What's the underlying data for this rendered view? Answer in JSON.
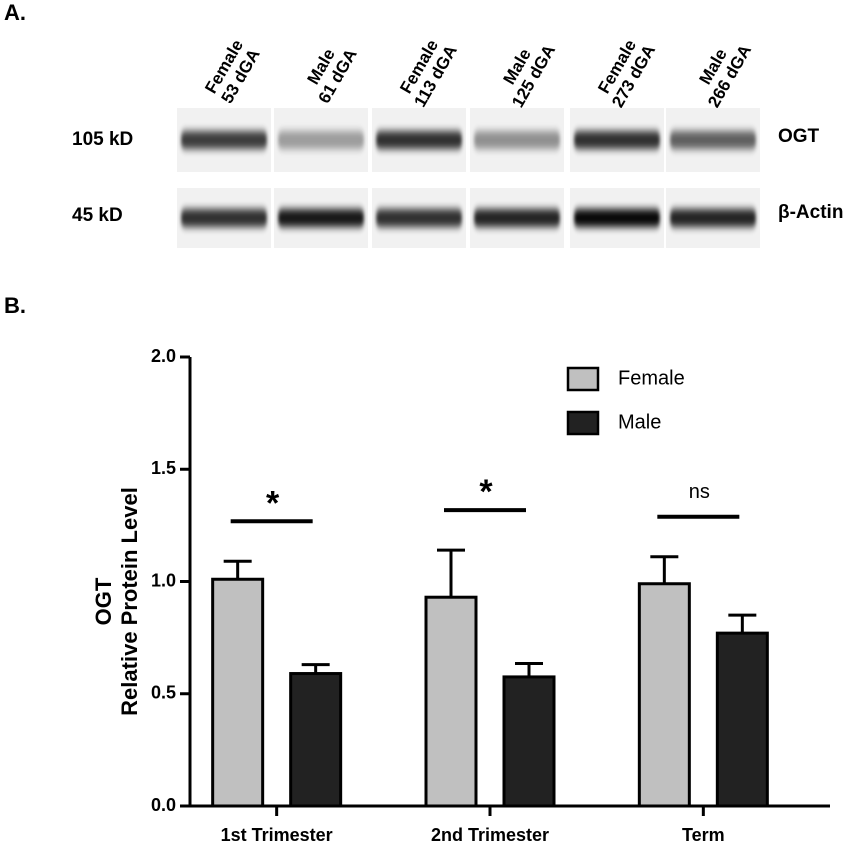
{
  "panel_a": {
    "label": "A.",
    "lanes": [
      {
        "sex": "Female",
        "age": "53 dGA"
      },
      {
        "sex": "Male",
        "age": "61 dGA"
      },
      {
        "sex": "Female",
        "age": "113 dGA"
      },
      {
        "sex": "Male",
        "age": "125 dGA"
      },
      {
        "sex": "Female",
        "age": "273 dGA"
      },
      {
        "sex": "Male",
        "age": "266 dGA"
      }
    ],
    "rows": [
      {
        "weight": "105 kD",
        "protein": "OGT"
      },
      {
        "weight": "45 kD",
        "protein": "β-Actin"
      }
    ]
  },
  "chart_data": {
    "type": "bar",
    "panel_label": "B.",
    "ylabel": [
      "OGT",
      "Relative Protein Level"
    ],
    "categories": [
      "1st Trimester",
      "2nd Trimester",
      "Term"
    ],
    "series": [
      {
        "name": "Female",
        "color": "#c0c0c0",
        "values": [
          1.01,
          0.93,
          0.99
        ],
        "errors": [
          0.08,
          0.21,
          0.12
        ]
      },
      {
        "name": "Male",
        "color": "#222222",
        "values": [
          0.59,
          0.575,
          0.77
        ],
        "errors": [
          0.04,
          0.06,
          0.08
        ]
      }
    ],
    "annotations": [
      "*",
      "*",
      "ns"
    ],
    "ylim": [
      0,
      2
    ],
    "yticks": [
      {
        "value": 0,
        "label": "0.0"
      },
      {
        "value": 0.5,
        "label": "0.5"
      },
      {
        "value": 1,
        "label": "1.0"
      },
      {
        "value": 1.5,
        "label": "1.5"
      },
      {
        "value": 2,
        "label": "2.0"
      }
    ],
    "legend": "upper right"
  }
}
